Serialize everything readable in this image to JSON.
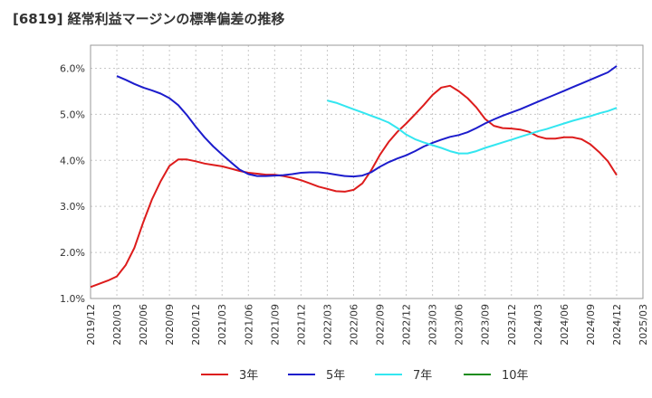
{
  "chart_data": {
    "type": "line",
    "title": "[6819]  経常利益マージンの標準偏差の推移",
    "xlabel": "",
    "ylabel": "",
    "ylim": [
      1.0,
      6.5
    ],
    "yticks": [
      "1.0%",
      "2.0%",
      "3.0%",
      "4.0%",
      "5.0%",
      "6.0%"
    ],
    "ytick_values": [
      1.0,
      2.0,
      3.0,
      4.0,
      5.0,
      6.0
    ],
    "xticks": [
      "2019/12",
      "2020/03",
      "2020/06",
      "2020/09",
      "2020/12",
      "2021/03",
      "2021/06",
      "2021/09",
      "2021/12",
      "2022/03",
      "2022/06",
      "2022/09",
      "2022/12",
      "2023/03",
      "2023/06",
      "2023/09",
      "2023/12",
      "2024/03",
      "2024/06",
      "2024/09",
      "2024/12",
      "2025/03"
    ],
    "grid": true,
    "legend_position": "bottom",
    "colors": {
      "3年": "#dd1c1c",
      "5年": "#1c1ccc",
      "7年": "#33e6f0",
      "10年": "#1a8c1a"
    },
    "series": [
      {
        "name": "3年",
        "x": [
          "2019/12",
          "2020/01",
          "2020/02",
          "2020/03",
          "2020/04",
          "2020/05",
          "2020/06",
          "2020/07",
          "2020/08",
          "2020/09",
          "2020/10",
          "2020/11",
          "2020/12",
          "2021/01",
          "2021/02",
          "2021/03",
          "2021/04",
          "2021/05",
          "2021/06",
          "2021/07",
          "2021/08",
          "2021/09",
          "2021/10",
          "2021/11",
          "2021/12",
          "2022/01",
          "2022/02",
          "2022/03",
          "2022/04",
          "2022/05",
          "2022/06",
          "2022/07",
          "2022/08",
          "2022/09",
          "2022/10",
          "2022/11",
          "2022/12",
          "2023/01",
          "2023/02",
          "2023/03",
          "2023/04",
          "2023/05",
          "2023/06",
          "2023/07",
          "2023/08",
          "2023/09",
          "2023/10",
          "2023/11",
          "2023/12",
          "2024/01",
          "2024/02",
          "2024/03",
          "2024/04",
          "2024/05",
          "2024/06",
          "2024/07",
          "2024/08",
          "2024/09",
          "2024/10",
          "2024/11",
          "2024/12"
        ],
        "values": [
          1.25,
          1.32,
          1.39,
          1.48,
          1.72,
          2.1,
          2.65,
          3.15,
          3.55,
          3.88,
          4.02,
          4.02,
          3.98,
          3.93,
          3.9,
          3.87,
          3.82,
          3.77,
          3.73,
          3.71,
          3.69,
          3.69,
          3.66,
          3.62,
          3.57,
          3.5,
          3.43,
          3.38,
          3.33,
          3.32,
          3.36,
          3.5,
          3.78,
          4.12,
          4.4,
          4.62,
          4.8,
          5.0,
          5.2,
          5.42,
          5.58,
          5.62,
          5.5,
          5.35,
          5.15,
          4.9,
          4.75,
          4.7,
          4.69,
          4.67,
          4.62,
          4.52,
          4.47,
          4.47,
          4.5,
          4.5,
          4.46,
          4.35,
          4.18,
          3.98,
          3.68
        ]
      },
      {
        "name": "5年",
        "x": [
          "2020/03",
          "2020/04",
          "2020/05",
          "2020/06",
          "2020/07",
          "2020/08",
          "2020/09",
          "2020/10",
          "2020/11",
          "2020/12",
          "2021/01",
          "2021/02",
          "2021/03",
          "2021/04",
          "2021/05",
          "2021/06",
          "2021/07",
          "2021/08",
          "2021/09",
          "2021/10",
          "2021/11",
          "2021/12",
          "2022/01",
          "2022/02",
          "2022/03",
          "2022/04",
          "2022/05",
          "2022/06",
          "2022/07",
          "2022/08",
          "2022/09",
          "2022/10",
          "2022/11",
          "2022/12",
          "2023/01",
          "2023/02",
          "2023/03",
          "2023/04",
          "2023/05",
          "2023/06",
          "2023/07",
          "2023/08",
          "2023/09",
          "2023/10",
          "2023/11",
          "2023/12",
          "2024/01",
          "2024/02",
          "2024/03",
          "2024/04",
          "2024/05",
          "2024/06",
          "2024/07",
          "2024/08",
          "2024/09",
          "2024/10",
          "2024/11",
          "2024/12"
        ],
        "values": [
          5.83,
          5.75,
          5.66,
          5.58,
          5.52,
          5.45,
          5.35,
          5.2,
          4.98,
          4.73,
          4.5,
          4.3,
          4.13,
          3.96,
          3.8,
          3.7,
          3.66,
          3.66,
          3.67,
          3.68,
          3.7,
          3.73,
          3.74,
          3.74,
          3.72,
          3.69,
          3.66,
          3.65,
          3.67,
          3.74,
          3.86,
          3.96,
          4.04,
          4.11,
          4.2,
          4.3,
          4.38,
          4.45,
          4.51,
          4.55,
          4.61,
          4.7,
          4.8,
          4.89,
          4.97,
          5.04,
          5.11,
          5.19,
          5.27,
          5.35,
          5.43,
          5.51,
          5.59,
          5.67,
          5.75,
          5.83,
          5.91,
          6.05
        ]
      },
      {
        "name": "7年",
        "x": [
          "2022/03",
          "2022/04",
          "2022/05",
          "2022/06",
          "2022/07",
          "2022/08",
          "2022/09",
          "2022/10",
          "2022/11",
          "2022/12",
          "2023/01",
          "2023/02",
          "2023/03",
          "2023/04",
          "2023/05",
          "2023/06",
          "2023/07",
          "2023/08",
          "2023/09",
          "2023/10",
          "2023/11",
          "2023/12",
          "2024/01",
          "2024/02",
          "2024/03",
          "2024/04",
          "2024/05",
          "2024/06",
          "2024/07",
          "2024/08",
          "2024/09",
          "2024/10",
          "2024/11",
          "2024/12"
        ],
        "values": [
          5.3,
          5.25,
          5.18,
          5.11,
          5.04,
          4.97,
          4.9,
          4.82,
          4.7,
          4.56,
          4.46,
          4.39,
          4.33,
          4.27,
          4.2,
          4.15,
          4.15,
          4.2,
          4.27,
          4.33,
          4.39,
          4.45,
          4.51,
          4.57,
          4.63,
          4.68,
          4.74,
          4.8,
          4.86,
          4.91,
          4.96,
          5.02,
          5.07,
          5.14
        ]
      },
      {
        "name": "10年",
        "x": [],
        "values": []
      }
    ]
  }
}
